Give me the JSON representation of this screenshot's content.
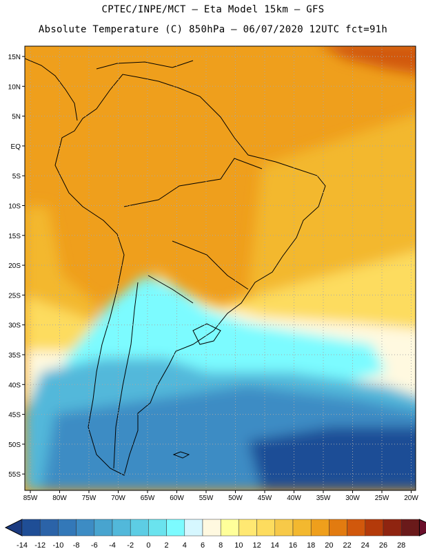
{
  "header": {
    "line1": "CPTEC/INPE/MCT –  Eta Model 15km – GFS",
    "line2": "Absolute Temperature (C) 850hPa – 06/07/2020 12UTC fct=91h"
  },
  "axes": {
    "lat_labels": [
      "15N",
      "10N",
      "5N",
      "EQ",
      "5S",
      "10S",
      "15S",
      "20S",
      "25S",
      "30S",
      "35S",
      "40S",
      "45S",
      "50S",
      "55S"
    ],
    "lon_labels": [
      "85W",
      "80W",
      "75W",
      "70W",
      "65W",
      "60W",
      "55W",
      "50W",
      "45W",
      "40W",
      "35W",
      "30W",
      "25W",
      "20W"
    ]
  },
  "colorbar": {
    "tick_labels": [
      "-14",
      "-12",
      "-10",
      "-8",
      "-6",
      "-4",
      "-2",
      "0",
      "2",
      "4",
      "6",
      "8",
      "10",
      "12",
      "14",
      "16",
      "18",
      "20",
      "22",
      "24",
      "26",
      "28"
    ],
    "colors": [
      "#1f4e96",
      "#2b63a8",
      "#3378b8",
      "#3d8cc4",
      "#48a4cf",
      "#52b8da",
      "#5dcde4",
      "#6ae3ee",
      "#7cfbff",
      "#d6f7ff",
      "#fff9e0",
      "#ffff9a",
      "#ffe872",
      "#fddc5e",
      "#f7c948",
      "#f3b82f",
      "#ef9f1c",
      "#e27b10",
      "#d1580c",
      "#b43a0a",
      "#8f2410",
      "#6a1a1a"
    ],
    "under_color": "#1a3a80",
    "over_color": "#6a0f2a"
  },
  "field_colors": {
    "tropical": "#ef9f1c",
    "warm": "#f3b82f",
    "mild": "#fddc5e",
    "neutral": "#fff9e0",
    "cool": "#7cfbff",
    "cold": "#52b8da",
    "colder": "#3d8cc4",
    "coldest": "#1f4e96",
    "hot": "#d1580c",
    "land_outline": "#000000",
    "grid_color": "#a8a8a8"
  }
}
